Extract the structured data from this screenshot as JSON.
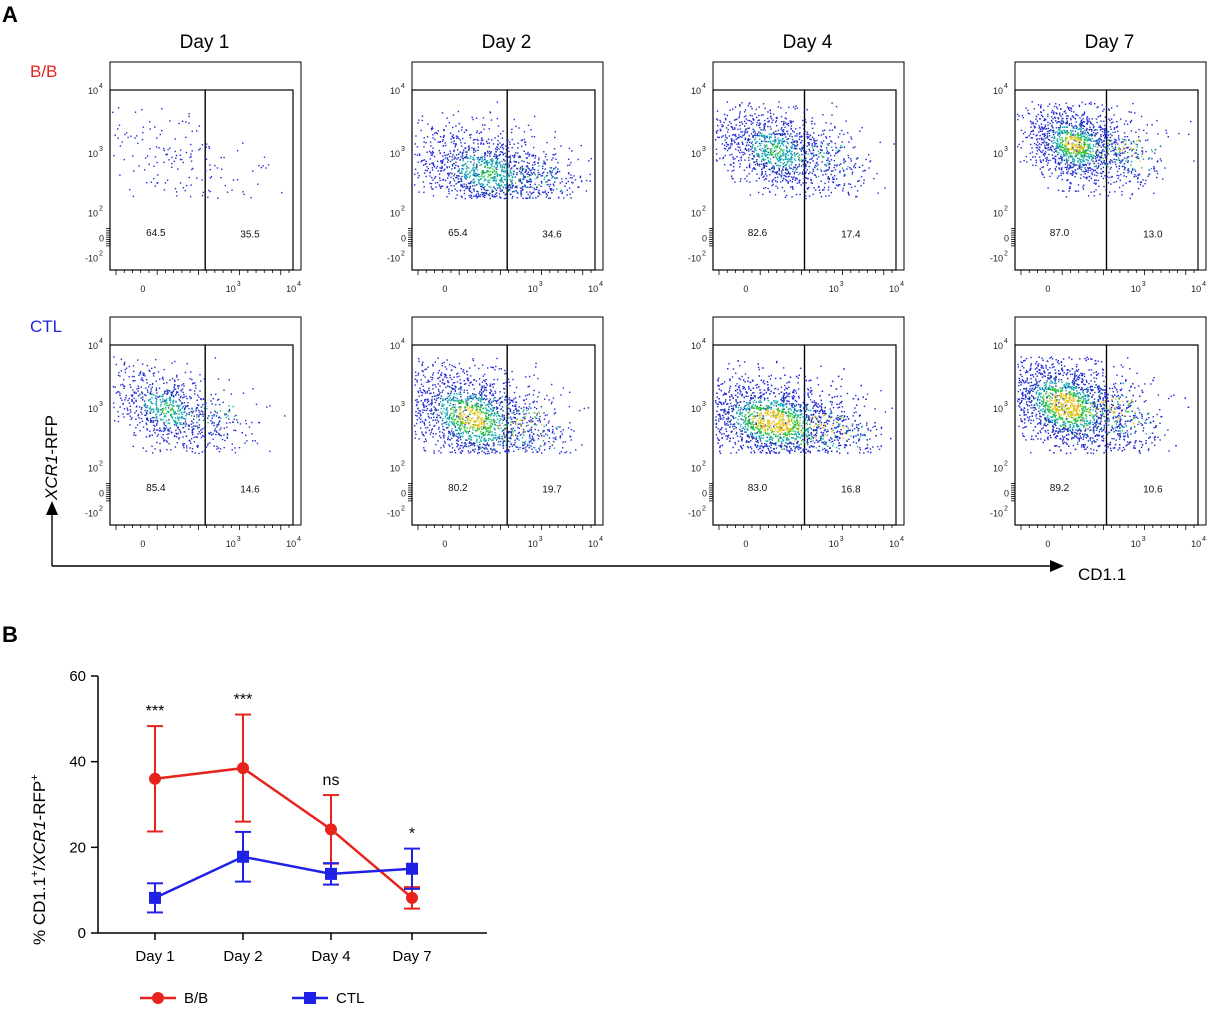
{
  "figure": {
    "panel_a_label": "A",
    "panel_b_label": "B",
    "days": [
      "Day 1",
      "Day 2",
      "Day 4",
      "Day 7"
    ],
    "rows": [
      {
        "label": "B/B",
        "color": "#e8231c"
      },
      {
        "label": "CTL",
        "color": "#1f22e6"
      }
    ],
    "y_axis_label": "XCR1-RFP",
    "x_axis_label": "CD1.1",
    "y_ticks": [
      {
        "base": "10",
        "exp": "4"
      },
      {
        "base": "10",
        "exp": "3"
      },
      {
        "base": "10",
        "exp": "2"
      },
      {
        "base": "0",
        "exp": ""
      },
      {
        "base": "-10",
        "exp": "2"
      }
    ],
    "x_ticks": [
      {
        "base": "0",
        "exp": ""
      },
      {
        "base": "10",
        "exp": "3"
      },
      {
        "base": "10",
        "exp": "4"
      }
    ],
    "gate_percentages": [
      [
        [
          "64.5",
          "35.5"
        ],
        [
          "65.4",
          "34.6"
        ],
        [
          "82.6",
          "17.4"
        ],
        [
          "87.0",
          "13.0"
        ]
      ],
      [
        [
          "85.4",
          "14.6"
        ],
        [
          "80.2",
          "19.7"
        ],
        [
          "83.0",
          "16.8"
        ],
        [
          "89.2",
          "10.6"
        ]
      ]
    ]
  },
  "chart_data": {
    "type": "line",
    "title": "",
    "xlabel": "",
    "ylabel": "% CD1.1+/XCR1-RFP+",
    "ylabel_parts": [
      "% CD1.1",
      "+",
      "/",
      "XCR1",
      "-RFP",
      "+"
    ],
    "categories": [
      "Day 1",
      "Day 2",
      "Day 4",
      "Day 7"
    ],
    "ylim": [
      0,
      60
    ],
    "yticks": [
      0,
      20,
      40,
      60
    ],
    "series": [
      {
        "name": "B/B",
        "color": "#e8231c",
        "marker": "circle",
        "values": [
          36,
          38.5,
          24.2,
          8.2
        ],
        "errors": [
          12.3,
          12.5,
          8.0,
          2.5
        ]
      },
      {
        "name": "CTL",
        "color": "#1f22e6",
        "marker": "square",
        "values": [
          8.2,
          17.8,
          13.8,
          15
        ],
        "errors": [
          3.4,
          5.8,
          2.5,
          4.7
        ]
      }
    ],
    "significance": [
      "***",
      "***",
      "ns",
      "*"
    ]
  }
}
